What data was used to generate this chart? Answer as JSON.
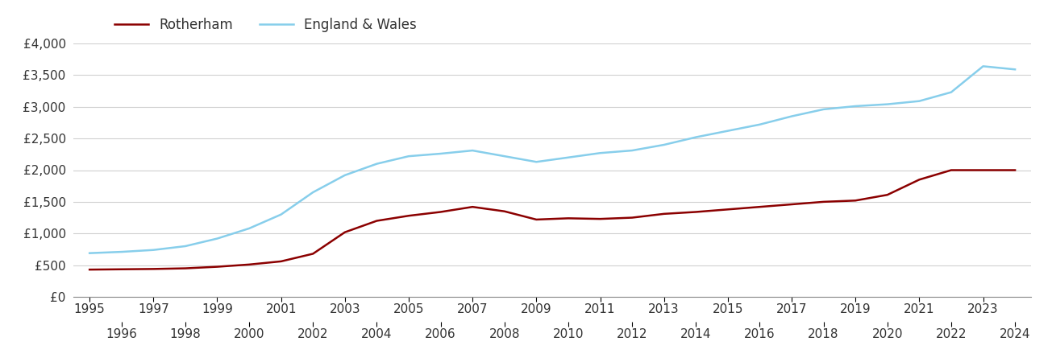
{
  "rotherham_years": [
    1995,
    1996,
    1997,
    1998,
    1999,
    2000,
    2001,
    2002,
    2003,
    2004,
    2005,
    2006,
    2007,
    2008,
    2009,
    2010,
    2011,
    2012,
    2013,
    2014,
    2015,
    2016,
    2017,
    2018,
    2019,
    2020,
    2021,
    2022,
    2023,
    2024
  ],
  "rotherham_values": [
    430,
    435,
    440,
    450,
    475,
    510,
    560,
    680,
    1020,
    1200,
    1280,
    1340,
    1420,
    1350,
    1220,
    1240,
    1230,
    1250,
    1310,
    1340,
    1380,
    1420,
    1460,
    1500,
    1520,
    1610,
    1850,
    2000,
    2000,
    2000
  ],
  "ew_years": [
    1995,
    1996,
    1997,
    1998,
    1999,
    2000,
    2001,
    2002,
    2003,
    2004,
    2005,
    2006,
    2007,
    2008,
    2009,
    2010,
    2011,
    2012,
    2013,
    2014,
    2015,
    2016,
    2017,
    2018,
    2019,
    2020,
    2021,
    2022,
    2023,
    2024
  ],
  "ew_values": [
    690,
    710,
    740,
    800,
    920,
    1080,
    1300,
    1650,
    1920,
    2100,
    2220,
    2260,
    2310,
    2220,
    2130,
    2200,
    2270,
    2310,
    2400,
    2520,
    2620,
    2720,
    2850,
    2960,
    3010,
    3040,
    3090,
    3230,
    3640,
    3590
  ],
  "rotherham_color": "#8B0000",
  "ew_color": "#87CEEB",
  "rotherham_label": "Rotherham",
  "ew_label": "England & Wales",
  "ylim": [
    0,
    4000
  ],
  "yticks": [
    0,
    500,
    1000,
    1500,
    2000,
    2500,
    3000,
    3500,
    4000
  ],
  "ytick_labels": [
    "£0",
    "£500",
    "£1,000",
    "£1,500",
    "£2,000",
    "£2,500",
    "£3,000",
    "£3,500",
    "£4,000"
  ],
  "xlim_min": 1994.5,
  "xlim_max": 2024.5,
  "odd_xticks": [
    1995,
    1997,
    1999,
    2001,
    2003,
    2005,
    2007,
    2009,
    2011,
    2013,
    2015,
    2017,
    2019,
    2021,
    2023
  ],
  "even_xticks": [
    1996,
    1998,
    2000,
    2002,
    2004,
    2006,
    2008,
    2010,
    2012,
    2014,
    2016,
    2018,
    2020,
    2022,
    2024
  ],
  "background_color": "#ffffff",
  "grid_color": "#d0d0d0",
  "line_width": 1.8,
  "legend_fontsize": 12,
  "tick_fontsize": 11
}
